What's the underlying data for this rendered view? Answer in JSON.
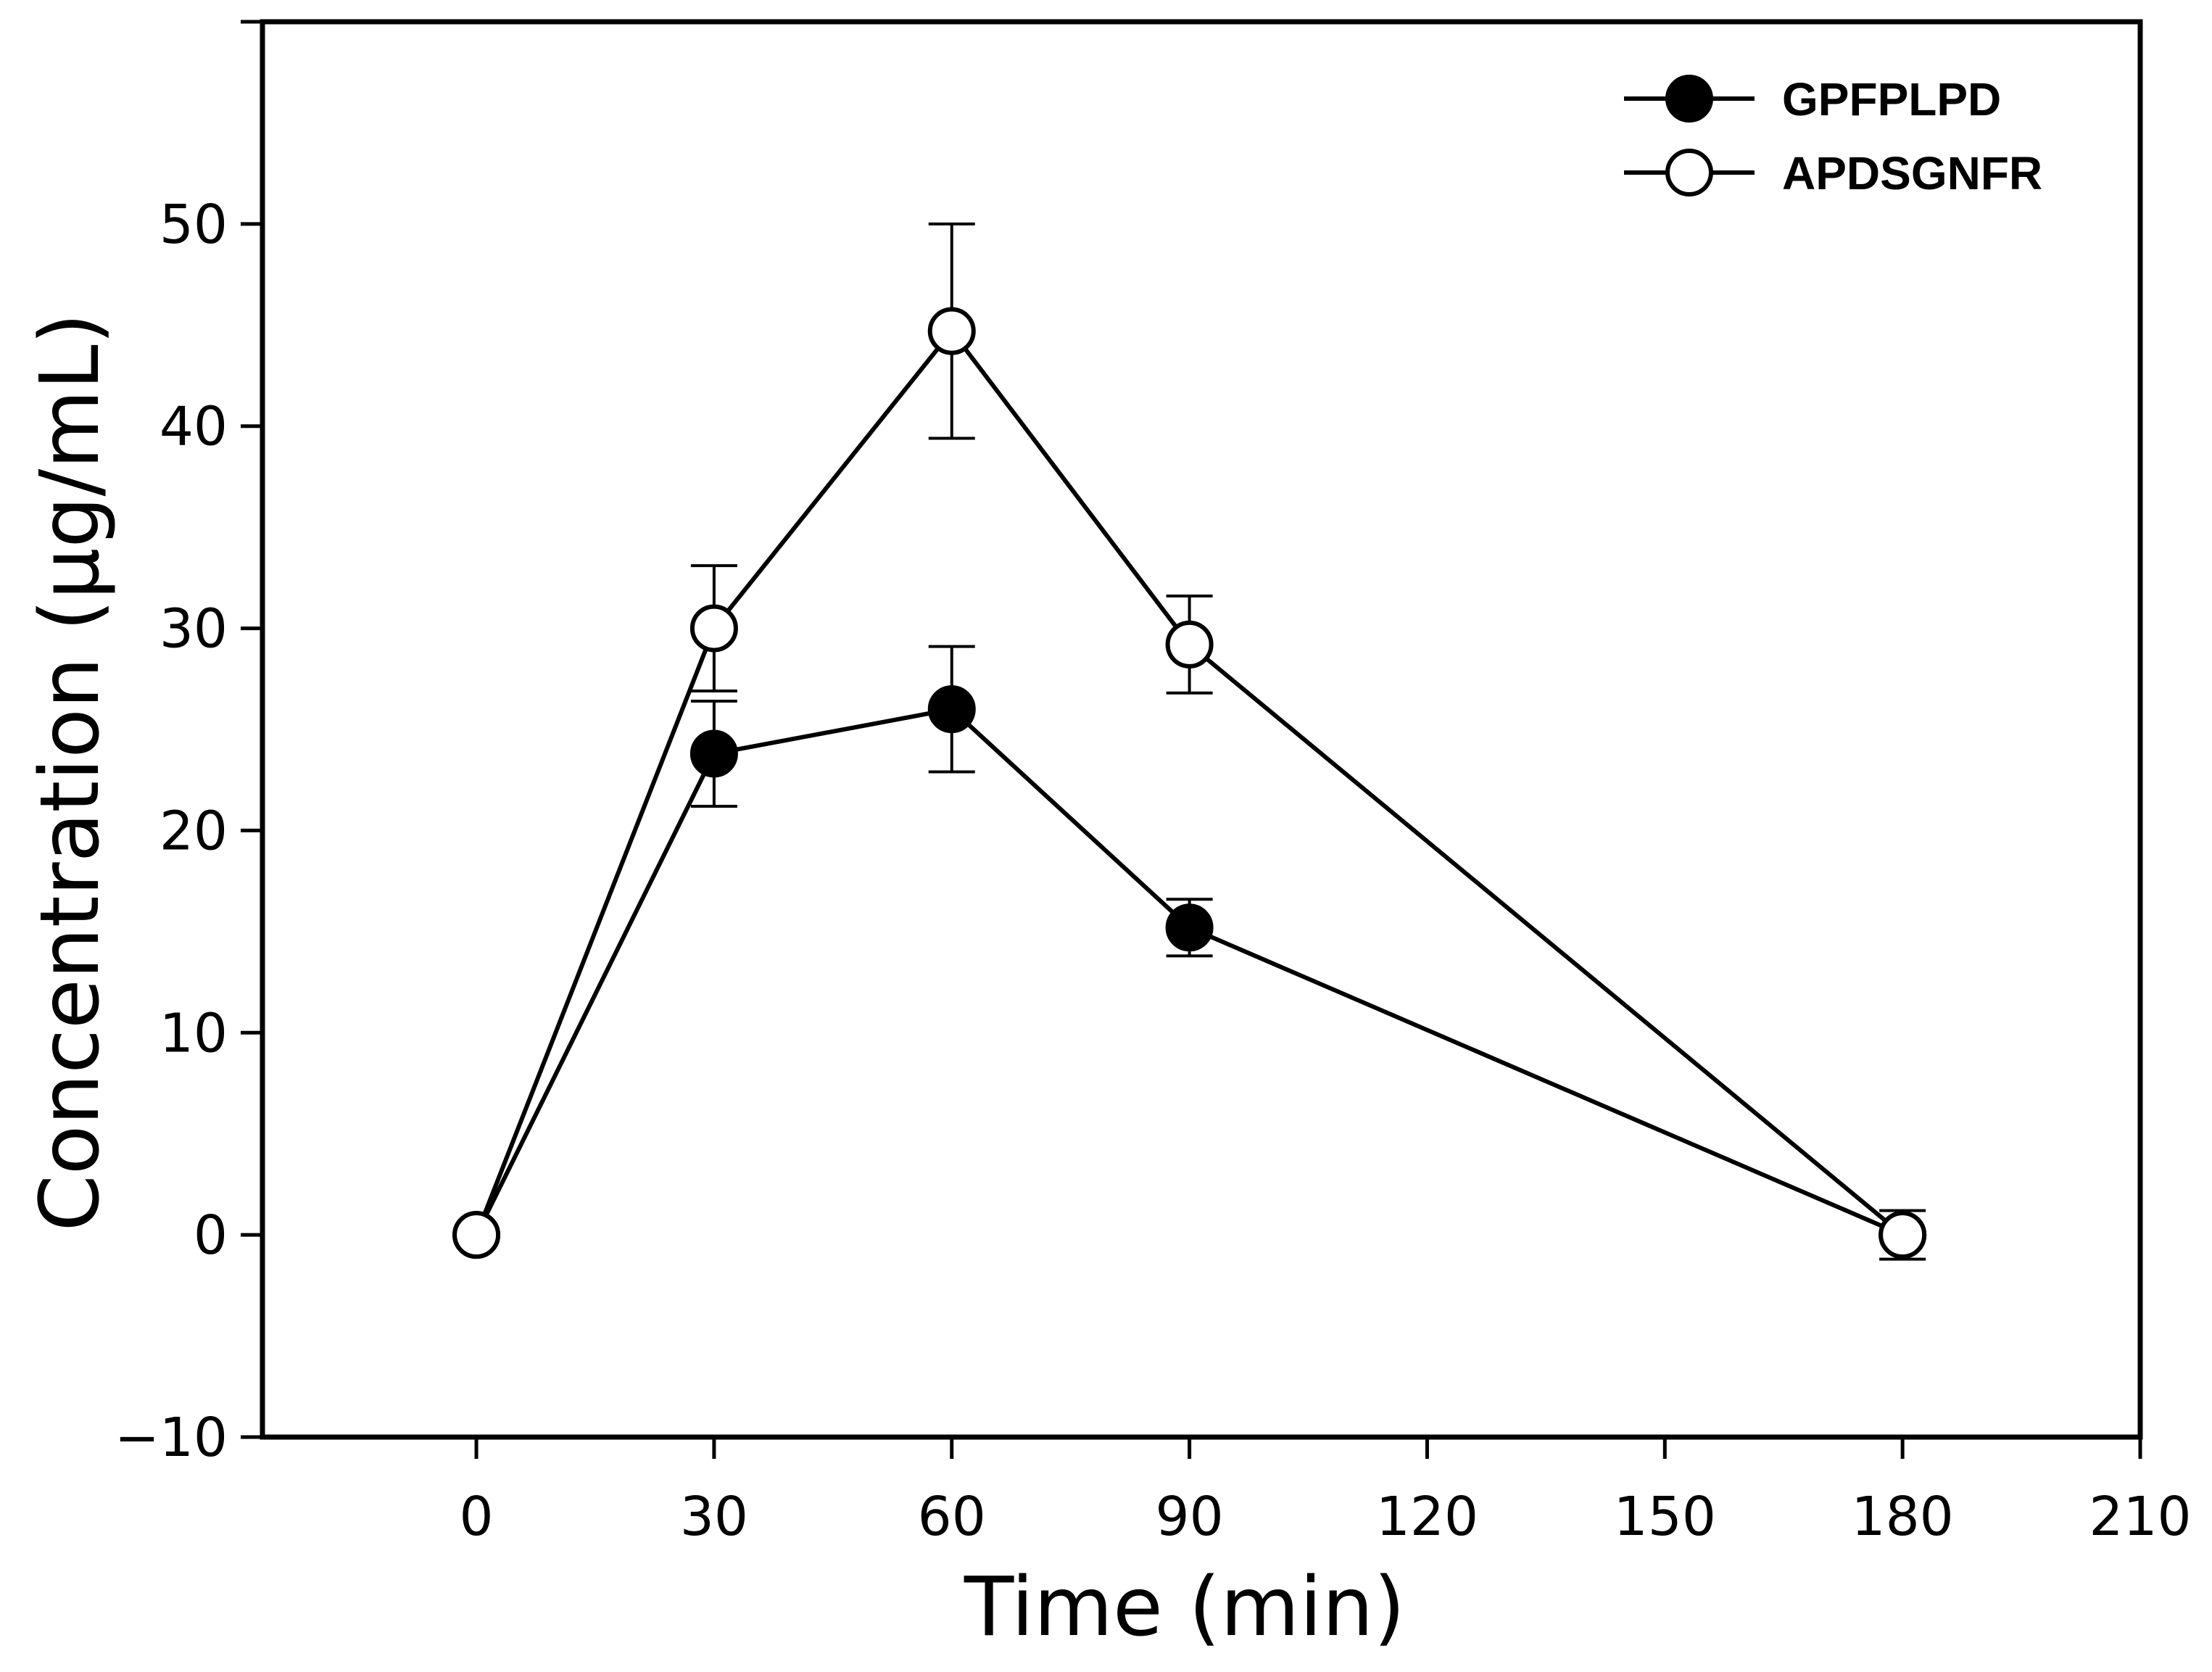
{
  "chart_data": {
    "type": "line",
    "title": "",
    "xlabel": "Time (min)",
    "ylabel": "Concentration (μg/mL)",
    "xlim": [
      -27,
      210
    ],
    "ylim": [
      -10,
      60
    ],
    "x_ticks": [
      0,
      30,
      60,
      90,
      120,
      150,
      180,
      210
    ],
    "x_tick_labels": [
      "0",
      "30",
      "60",
      "90",
      "120",
      "150",
      "180",
      "210"
    ],
    "y_ticks": [
      -10,
      0,
      10,
      20,
      30,
      40,
      50,
      60
    ],
    "y_tick_labels": [
      "−10",
      "0",
      "10",
      "20",
      "30",
      "40",
      "50",
      ""
    ],
    "grid": false,
    "legend_position": "top-right",
    "series": [
      {
        "name": "GPFPLPD",
        "marker": "filled-circle",
        "color": "#000000",
        "x": [
          0,
          30,
          60,
          90,
          180
        ],
        "values": [
          0,
          23.8,
          26.0,
          15.2,
          0
        ],
        "error": [
          0,
          2.6,
          3.1,
          1.4,
          0
        ]
      },
      {
        "name": "APDSGNFR",
        "marker": "open-circle",
        "color": "#000000",
        "x": [
          0,
          30,
          60,
          90,
          180
        ],
        "values": [
          0,
          30.0,
          44.7,
          29.2,
          0
        ],
        "error": [
          0,
          3.1,
          5.3,
          2.4,
          1.2
        ]
      }
    ]
  }
}
